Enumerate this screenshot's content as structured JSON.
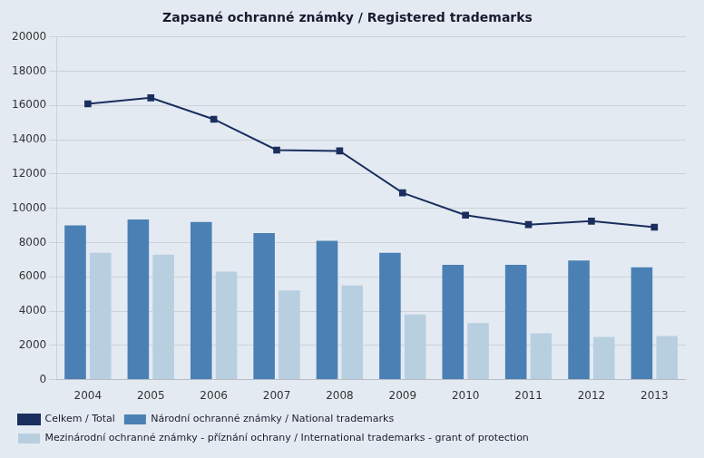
{
  "chart_data": {
    "type": "bar",
    "title": "Zapsané ochranné známky / Registered trademarks",
    "categories": [
      "2004",
      "2005",
      "2006",
      "2007",
      "2008",
      "2009",
      "2010",
      "2011",
      "2012",
      "2013"
    ],
    "series": [
      {
        "name": "Celkem / Total",
        "type": "line",
        "marker": "square",
        "color": "#1a2f5e",
        "values": [
          16100,
          16450,
          15200,
          13400,
          13350,
          10900,
          9600,
          9050,
          9250,
          8900
        ]
      },
      {
        "name": "Národní ochranné známky / National trademarks",
        "type": "bar",
        "color": "#4a80b4",
        "values": [
          9000,
          9350,
          9200,
          8550,
          8100,
          7400,
          6700,
          6700,
          6950,
          6550
        ]
      },
      {
        "name": "Mezinárodní ochranné známky - příznání ochrany / International trademarks - grant of protection",
        "type": "bar",
        "color": "#b8cfe0",
        "values": [
          7400,
          7300,
          6300,
          5200,
          5500,
          3800,
          3300,
          2700,
          2500,
          2550
        ]
      }
    ],
    "ylim": [
      0,
      20000
    ],
    "yticks": [
      0,
      2000,
      4000,
      6000,
      8000,
      10000,
      12000,
      14000,
      16000,
      18000,
      20000
    ],
    "grid": true,
    "legend": "bottom"
  }
}
